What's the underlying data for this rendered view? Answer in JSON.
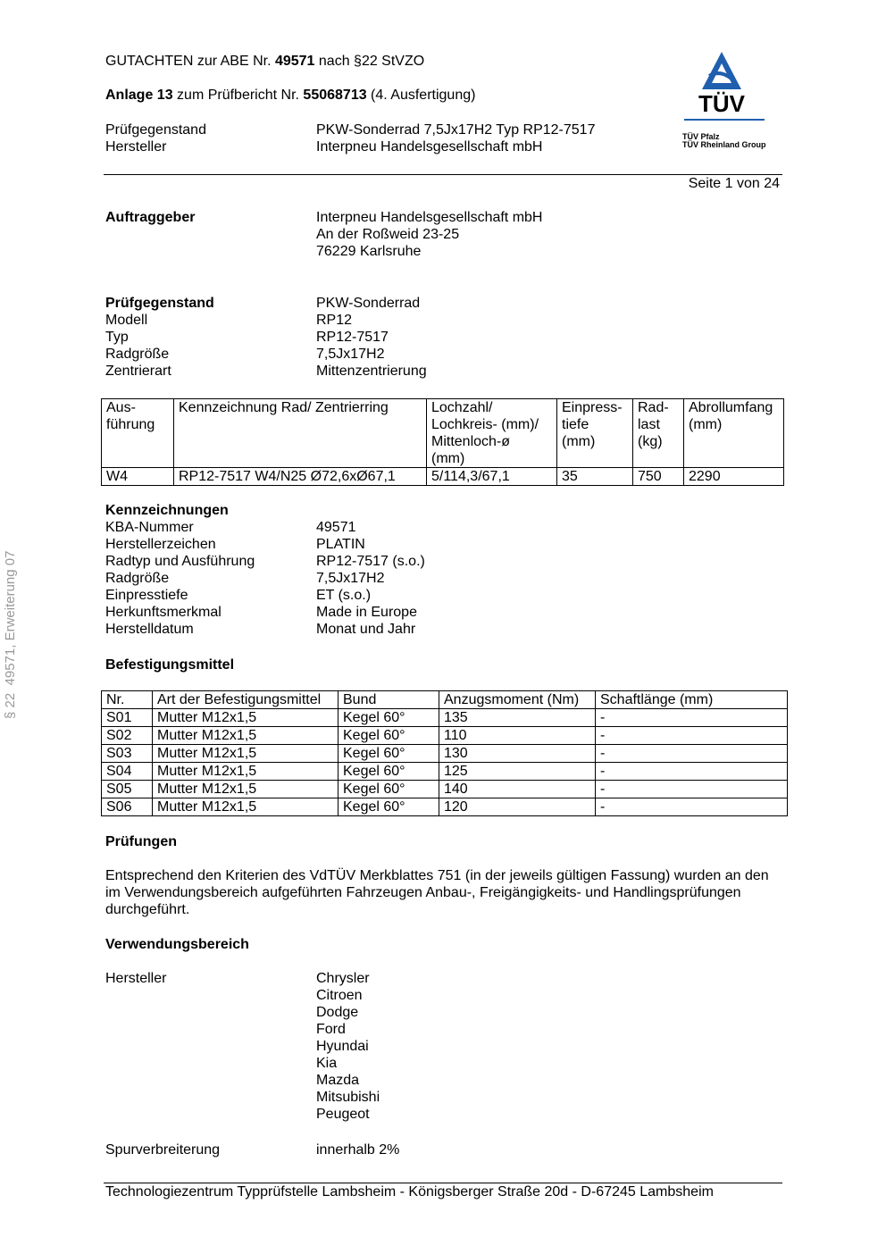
{
  "header": {
    "line1": {
      "pre": "GUTACHTEN zur ABE Nr. ",
      "num": "49571",
      "post": " nach §22 StVZO"
    },
    "line2": {
      "pre": "Anlage 13",
      "mid": " zum Prüfbericht Nr. ",
      "num": "55068713",
      "post": " (4. Ausfertigung)"
    },
    "rows": [
      {
        "k": "Prüfgegenstand",
        "v": "PKW-Sonderrad 7,5Jx17H2 Typ RP12-7517"
      },
      {
        "k": "Hersteller",
        "v": "Interpneu Handelsgesellschaft mbH"
      }
    ],
    "page": "Seite 1 von 24",
    "logo": {
      "mark": "TÜV",
      "line1": "TÜV Pfalz",
      "line2": "TÜV Rheinland Group",
      "color": "#1f5fae"
    }
  },
  "side_note": "§ 22  49571, Erweiterung 07",
  "auftraggeber": {
    "label": "Auftraggeber",
    "lines": [
      "Interpneu Handelsgesellschaft mbH",
      "An der Roßweid 23-25",
      "76229 Karlsruhe"
    ]
  },
  "pruefgegenstand": {
    "rows": [
      {
        "k": "Prüfgegenstand",
        "v": "PKW-Sonderrad"
      },
      {
        "k": "Modell",
        "v": "RP12"
      },
      {
        "k": "Typ",
        "v": "RP12-7517"
      },
      {
        "k": "Radgröße",
        "v": "7,5Jx17H2"
      },
      {
        "k": "Zentrierart",
        "v": "Mittenzentrierung"
      }
    ]
  },
  "wheel_table": {
    "headers": [
      "Aus-\nführung",
      "Kennzeichnung Rad/ Zentrierring",
      "Lochzahl/\nLochkreis- (mm)/\nMittenloch-ø\n(mm)",
      "Einpress-\ntiefe\n(mm)",
      "Rad-\nlast\n(kg)",
      "Abrollumfang\n(mm)"
    ],
    "rows": [
      [
        "W4",
        "RP12-7517 W4/N25 Ø72,6xØ67,1",
        "5/114,3/67,1",
        "35",
        "750",
        "2290"
      ]
    ]
  },
  "kennzeichnungen": {
    "title": "Kennzeichnungen",
    "rows": [
      {
        "k": "KBA-Nummer",
        "v": "49571"
      },
      {
        "k": "Herstellerzeichen",
        "v": "PLATIN"
      },
      {
        "k": "Radtyp und Ausführung",
        "v": "RP12-7517 (s.o.)"
      },
      {
        "k": "Radgröße",
        "v": "7,5Jx17H2"
      },
      {
        "k": "Einpresstiefe",
        "v": "ET (s.o.)"
      },
      {
        "k": "Herkunftsmerkmal",
        "v": "Made in Europe"
      },
      {
        "k": "Herstelldatum",
        "v": "Monat und Jahr"
      }
    ]
  },
  "befestigung": {
    "title": "Befestigungsmittel",
    "headers": [
      "Nr.",
      "Art der Befestigungsmittel",
      "Bund",
      "Anzugsmoment (Nm)",
      "Schaftlänge (mm)"
    ],
    "rows": [
      [
        "S01",
        "Mutter M12x1,5",
        "Kegel 60°",
        "135",
        "-"
      ],
      [
        "S02",
        "Mutter M12x1,5",
        "Kegel 60°",
        "110",
        "-"
      ],
      [
        "S03",
        "Mutter M12x1,5",
        "Kegel 60°",
        "130",
        "-"
      ],
      [
        "S04",
        "Mutter M12x1,5",
        "Kegel 60°",
        "125",
        "-"
      ],
      [
        "S05",
        "Mutter M12x1,5",
        "Kegel 60°",
        "140",
        "-"
      ],
      [
        "S06",
        "Mutter M12x1,5",
        "Kegel 60°",
        "120",
        "-"
      ]
    ]
  },
  "pruefungen": {
    "title": "Prüfungen",
    "text": "Entsprechend den Kriterien des VdTÜV Merkblattes 751 (in der jeweils gültigen Fassung) wurden an den im Verwendungsbereich aufgeführten Fahrzeugen Anbau-, Freigängigkeits- und Handlingsprüfungen durchgeführt."
  },
  "verwendung": {
    "title": "Verwendungsbereich",
    "hersteller_label": "Hersteller",
    "hersteller": [
      "Chrysler",
      "Citroen",
      "Dodge",
      "Ford",
      "Hyundai",
      "Kia",
      "Mazda",
      "Mitsubishi",
      "Peugeot"
    ],
    "spur_label": "Spurverbreiterung",
    "spur_value": "innerhalb 2%"
  },
  "footer": "Technologiezentrum Typprüfstelle Lambsheim - Königsberger Straße 20d - D-67245 Lambsheim"
}
